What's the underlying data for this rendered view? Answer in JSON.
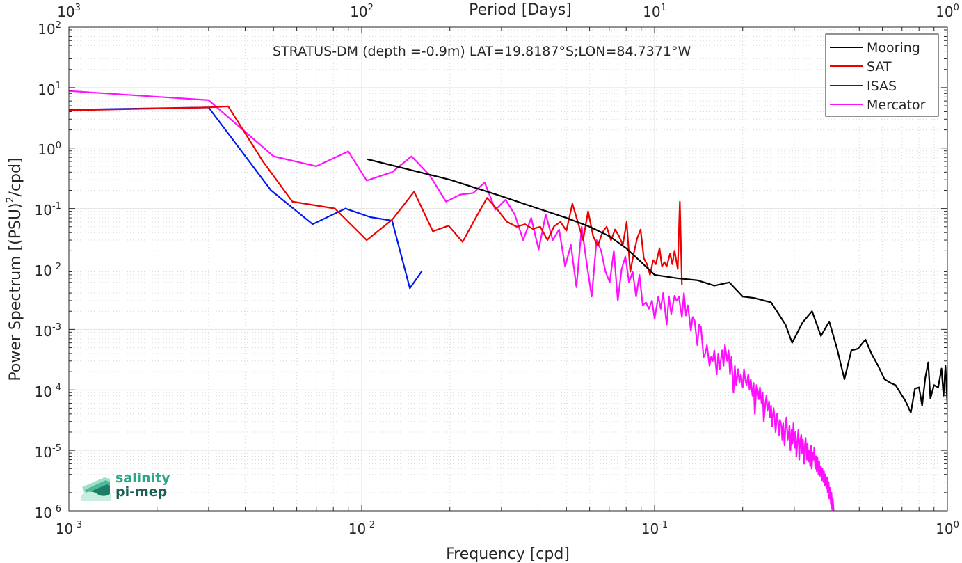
{
  "chart_data": {
    "type": "line",
    "title": "STRATUS-DM (depth =-0.9m) LAT=19.8187°S;LON=84.7371°W",
    "xlabel": "Frequency [cpd]",
    "ylabel": "Power Spectrum [(PSU)²/cpd]",
    "top_xlabel": "Period [Days]",
    "xscale": "log",
    "yscale": "log",
    "xlim": [
      0.001,
      1
    ],
    "ylim": [
      1e-06,
      100
    ],
    "grid": true,
    "legend_position": "top-right",
    "x_ticks": [
      "10-3",
      "10-2",
      "10-1",
      "100"
    ],
    "top_ticks": [
      "103",
      "102",
      "101",
      "100"
    ],
    "y_ticks": [
      "10-6",
      "10-5",
      "10-4",
      "10-3",
      "10-2",
      "10-1",
      "100",
      "101",
      "102"
    ],
    "series": [
      {
        "name": "Mooring",
        "color": "#000000",
        "points": [
          [
            0.0105,
            0.65
          ],
          [
            0.02,
            0.3
          ],
          [
            0.03,
            0.16
          ],
          [
            0.04,
            0.1
          ],
          [
            0.05,
            0.07
          ],
          [
            0.06,
            0.05
          ],
          [
            0.07,
            0.035
          ],
          [
            0.08,
            0.022
          ],
          [
            0.09,
            0.013
          ],
          [
            0.1,
            0.008
          ],
          [
            0.12,
            0.007
          ],
          [
            0.14,
            0.0065
          ],
          [
            0.16,
            0.0053
          ],
          [
            0.18,
            0.006
          ],
          [
            0.2,
            0.0035
          ],
          [
            0.22,
            0.0033
          ],
          [
            0.25,
            0.0028
          ],
          [
            0.28,
            0.0012
          ],
          [
            0.295,
            0.0006
          ],
          [
            0.32,
            0.0013
          ],
          [
            0.345,
            0.002
          ],
          [
            0.37,
            0.00078
          ],
          [
            0.395,
            0.00135
          ],
          [
            0.42,
            0.00048
          ],
          [
            0.445,
            0.00015
          ],
          [
            0.47,
            0.00045
          ],
          [
            0.495,
            0.00048
          ],
          [
            0.525,
            0.00068
          ],
          [
            0.55,
            0.0004
          ],
          [
            0.58,
            0.00025
          ],
          [
            0.61,
            0.00015
          ],
          [
            0.64,
            0.00013
          ],
          [
            0.665,
            0.00012
          ],
          [
            0.69,
            9e-05
          ],
          [
            0.72,
            6.5e-05
          ],
          [
            0.75,
            4.2e-05
          ],
          [
            0.775,
            0.000105
          ],
          [
            0.8,
            0.00011
          ],
          [
            0.82,
            5.5e-05
          ],
          [
            0.84,
            0.000155
          ],
          [
            0.86,
            0.000285
          ],
          [
            0.875,
            7.2e-05
          ],
          [
            0.9,
            0.00012
          ],
          [
            0.93,
            0.00011
          ],
          [
            0.955,
            0.000225
          ],
          [
            0.97,
            8e-05
          ],
          [
            0.985,
            0.00025
          ],
          [
            1.0,
            5.7e-05
          ]
        ]
      },
      {
        "name": "SAT",
        "color": "#ee0000",
        "points": [
          [
            0.001,
            4.2
          ],
          [
            0.003,
            4.7
          ],
          [
            0.0035,
            4.9
          ],
          [
            0.0046,
            0.6
          ],
          [
            0.0058,
            0.13
          ],
          [
            0.0081,
            0.1
          ],
          [
            0.0104,
            0.03
          ],
          [
            0.0127,
            0.065
          ],
          [
            0.0151,
            0.19
          ],
          [
            0.0175,
            0.042
          ],
          [
            0.0198,
            0.052
          ],
          [
            0.0221,
            0.028
          ],
          [
            0.0245,
            0.07
          ],
          [
            0.0268,
            0.15
          ],
          [
            0.0291,
            0.095
          ],
          [
            0.0314,
            0.06
          ],
          [
            0.0338,
            0.05
          ],
          [
            0.0361,
            0.055
          ],
          [
            0.0384,
            0.046
          ],
          [
            0.0407,
            0.05
          ],
          [
            0.0431,
            0.03
          ],
          [
            0.0454,
            0.051
          ],
          [
            0.0477,
            0.06
          ],
          [
            0.05,
            0.043
          ],
          [
            0.0524,
            0.12
          ],
          [
            0.0547,
            0.06
          ],
          [
            0.057,
            0.03
          ],
          [
            0.0593,
            0.09
          ],
          [
            0.0617,
            0.035
          ],
          [
            0.064,
            0.024
          ],
          [
            0.0663,
            0.04
          ],
          [
            0.0686,
            0.05
          ],
          [
            0.071,
            0.03
          ],
          [
            0.0733,
            0.045
          ],
          [
            0.0756,
            0.035
          ],
          [
            0.0779,
            0.025
          ],
          [
            0.0803,
            0.06
          ],
          [
            0.0826,
            0.009
          ],
          [
            0.0849,
            0.018
          ],
          [
            0.0872,
            0.032
          ],
          [
            0.0896,
            0.045
          ],
          [
            0.0919,
            0.015
          ],
          [
            0.0942,
            0.012
          ],
          [
            0.0965,
            0.008
          ],
          [
            0.0989,
            0.014
          ],
          [
            0.101,
            0.012
          ],
          [
            0.104,
            0.022
          ],
          [
            0.106,
            0.011
          ],
          [
            0.108,
            0.013
          ],
          [
            0.11,
            0.011
          ],
          [
            0.113,
            0.018
          ],
          [
            0.115,
            0.012
          ],
          [
            0.117,
            0.02
          ],
          [
            0.12,
            0.01
          ],
          [
            0.122,
            0.13
          ],
          [
            0.124,
            0.0055
          ]
        ]
      },
      {
        "name": "ISAS",
        "color": "#0019ee",
        "points": [
          [
            0.001,
            4.3
          ],
          [
            0.003,
            4.7
          ],
          [
            0.0049,
            0.2
          ],
          [
            0.0068,
            0.055
          ],
          [
            0.0088,
            0.1
          ],
          [
            0.0107,
            0.072
          ],
          [
            0.0127,
            0.063
          ],
          [
            0.0146,
            0.0048
          ],
          [
            0.016,
            0.009
          ]
        ]
      },
      {
        "name": "Mercator",
        "color": "#ff11ff",
        "points": [
          [
            0.001,
            8.8
          ],
          [
            0.003,
            6.2
          ],
          [
            0.005,
            0.73
          ],
          [
            0.007,
            0.5
          ],
          [
            0.009,
            0.88
          ],
          [
            0.0104,
            0.29
          ],
          [
            0.0127,
            0.4
          ],
          [
            0.0148,
            0.73
          ],
          [
            0.0171,
            0.35
          ],
          [
            0.0194,
            0.13
          ],
          [
            0.0217,
            0.17
          ],
          [
            0.024,
            0.18
          ],
          [
            0.0263,
            0.27
          ],
          [
            0.0286,
            0.095
          ],
          [
            0.031,
            0.14
          ],
          [
            0.0333,
            0.08
          ],
          [
            0.0356,
            0.03
          ],
          [
            0.0379,
            0.07
          ],
          [
            0.0402,
            0.021
          ],
          [
            0.0425,
            0.08
          ],
          [
            0.0449,
            0.03
          ],
          [
            0.0472,
            0.045
          ],
          [
            0.0495,
            0.011
          ],
          [
            0.0518,
            0.025
          ],
          [
            0.0541,
            0.005
          ],
          [
            0.0564,
            0.05
          ],
          [
            0.0587,
            0.012
          ],
          [
            0.061,
            0.0035
          ],
          [
            0.0634,
            0.03
          ],
          [
            0.0657,
            0.02
          ],
          [
            0.068,
            0.009
          ],
          [
            0.0703,
            0.006
          ],
          [
            0.0726,
            0.02
          ],
          [
            0.0749,
            0.003
          ],
          [
            0.0772,
            0.01
          ],
          [
            0.0795,
            0.016
          ],
          [
            0.0818,
            0.006
          ],
          [
            0.0842,
            0.009
          ],
          [
            0.0865,
            0.0035
          ],
          [
            0.0888,
            0.008
          ],
          [
            0.0911,
            0.0025
          ],
          [
            0.0934,
            0.0028
          ],
          [
            0.0957,
            0.0022
          ],
          [
            0.098,
            0.003
          ],
          [
            0.1,
            0.0015
          ],
          [
            0.103,
            0.0035
          ],
          [
            0.105,
            0.0022
          ],
          [
            0.107,
            0.004
          ],
          [
            0.11,
            0.0012
          ],
          [
            0.112,
            0.0035
          ],
          [
            0.114,
            0.0018
          ],
          [
            0.117,
            0.0036
          ],
          [
            0.119,
            0.003
          ],
          [
            0.121,
            0.0035
          ],
          [
            0.124,
            0.0016
          ],
          [
            0.126,
            0.004
          ],
          [
            0.128,
            0.0017
          ],
          [
            0.13,
            0.0025
          ],
          [
            0.133,
            0.00095
          ],
          [
            0.135,
            0.0016
          ],
          [
            0.137,
            0.0014
          ],
          [
            0.14,
            0.00055
          ],
          [
            0.142,
            0.0012
          ],
          [
            0.144,
            0.0011
          ],
          [
            0.147,
            0.00035
          ],
          [
            0.149,
            0.0004
          ],
          [
            0.151,
            0.00055
          ],
          [
            0.154,
            0.00025
          ],
          [
            0.156,
            0.00035
          ],
          [
            0.158,
            0.0003
          ],
          [
            0.16,
            0.00045
          ],
          [
            0.163,
            0.00018
          ],
          [
            0.165,
            0.0004
          ],
          [
            0.167,
            0.00022
          ],
          [
            0.17,
            0.00045
          ],
          [
            0.172,
            0.00025
          ],
          [
            0.174,
            0.00055
          ],
          [
            0.177,
            0.0003
          ],
          [
            0.179,
            0.00045
          ],
          [
            0.181,
            0.00018
          ],
          [
            0.183,
            0.00035
          ],
          [
            0.186,
            9e-05
          ],
          [
            0.188,
            0.00025
          ],
          [
            0.19,
            0.00012
          ],
          [
            0.193,
            0.00022
          ],
          [
            0.195,
            0.00013
          ],
          [
            0.197,
            0.00018
          ],
          [
            0.2,
            0.00011
          ],
          [
            0.202,
            0.00022
          ],
          [
            0.204,
            0.00015
          ],
          [
            0.206,
            0.00012
          ],
          [
            0.209,
            0.00018
          ],
          [
            0.211,
            0.0001
          ],
          [
            0.213,
            0.00015
          ],
          [
            0.216,
            8e-05
          ],
          [
            0.218,
            0.00013
          ],
          [
            0.22,
            4e-05
          ],
          [
            0.223,
            0.00012
          ],
          [
            0.225,
            0.0001
          ],
          [
            0.227,
            7e-05
          ],
          [
            0.229,
            0.00011
          ],
          [
            0.232,
            6e-05
          ],
          [
            0.234,
            9e-05
          ],
          [
            0.236,
            3e-05
          ],
          [
            0.239,
            6e-05
          ],
          [
            0.241,
            8e-05
          ],
          [
            0.243,
            4.5e-05
          ],
          [
            0.246,
            6.5e-05
          ],
          [
            0.248,
            3.5e-05
          ],
          [
            0.25,
            5.5e-05
          ],
          [
            0.252,
            2.5e-05
          ],
          [
            0.255,
            5e-05
          ],
          [
            0.257,
            3.5e-05
          ],
          [
            0.259,
            2e-05
          ],
          [
            0.262,
            4e-05
          ],
          [
            0.264,
            3e-05
          ],
          [
            0.266,
            1.8e-05
          ],
          [
            0.268,
            3.2e-05
          ],
          [
            0.271,
            2.6e-05
          ],
          [
            0.273,
            1.5e-05
          ],
          [
            0.275,
            2.8e-05
          ],
          [
            0.278,
            1.2e-05
          ],
          [
            0.28,
            2.5e-05
          ],
          [
            0.282,
            3.5e-05
          ],
          [
            0.285,
            1.5e-05
          ],
          [
            0.287,
            1.8e-05
          ],
          [
            0.289,
            2.6e-05
          ],
          [
            0.291,
            1e-05
          ],
          [
            0.294,
            2.2e-05
          ],
          [
            0.296,
            1.3e-05
          ],
          [
            0.298,
            2.8e-05
          ],
          [
            0.301,
            1.1e-05
          ],
          [
            0.303,
            2e-05
          ],
          [
            0.305,
            8e-06
          ],
          [
            0.308,
            1.6e-05
          ],
          [
            0.31,
            2.2e-05
          ],
          [
            0.312,
            7e-06
          ],
          [
            0.314,
            1.4e-05
          ],
          [
            0.317,
            1.8e-05
          ],
          [
            0.319,
            9e-06
          ],
          [
            0.321,
            1.5e-05
          ],
          [
            0.324,
            6e-06
          ],
          [
            0.326,
            1.2e-05
          ],
          [
            0.328,
            1.6e-05
          ],
          [
            0.331,
            7e-06
          ],
          [
            0.333,
            1.3e-05
          ],
          [
            0.335,
            6.5e-06
          ],
          [
            0.337,
            1e-05
          ],
          [
            0.34,
            5.5e-06
          ],
          [
            0.342,
            1.2e-05
          ],
          [
            0.344,
            5e-06
          ],
          [
            0.347,
            9e-06
          ],
          [
            0.349,
            7e-06
          ],
          [
            0.351,
            1.1e-05
          ],
          [
            0.354,
            5e-06
          ],
          [
            0.356,
            8e-06
          ],
          [
            0.358,
            4.5e-06
          ],
          [
            0.36,
            7.5e-06
          ],
          [
            0.363,
            4e-06
          ],
          [
            0.365,
            6.5e-06
          ],
          [
            0.367,
            3.8e-06
          ],
          [
            0.37,
            5.5e-06
          ],
          [
            0.372,
            3.2e-06
          ],
          [
            0.374,
            5e-06
          ],
          [
            0.377,
            3e-06
          ],
          [
            0.379,
            4.5e-06
          ],
          [
            0.381,
            2.6e-06
          ],
          [
            0.383,
            4e-06
          ],
          [
            0.386,
            2.4e-06
          ],
          [
            0.388,
            3.6e-06
          ],
          [
            0.39,
            2e-06
          ],
          [
            0.393,
            3e-06
          ],
          [
            0.395,
            1.6e-06
          ],
          [
            0.397,
            2.4e-06
          ],
          [
            0.4,
            1.3e-06
          ],
          [
            0.402,
            2e-06
          ],
          [
            0.404,
            1.05e-06
          ],
          [
            0.406,
            1.6e-06
          ],
          [
            0.409,
            1e-06
          ]
        ]
      }
    ]
  },
  "logo": {
    "line1": "salinity",
    "line2": "pi-mep"
  }
}
